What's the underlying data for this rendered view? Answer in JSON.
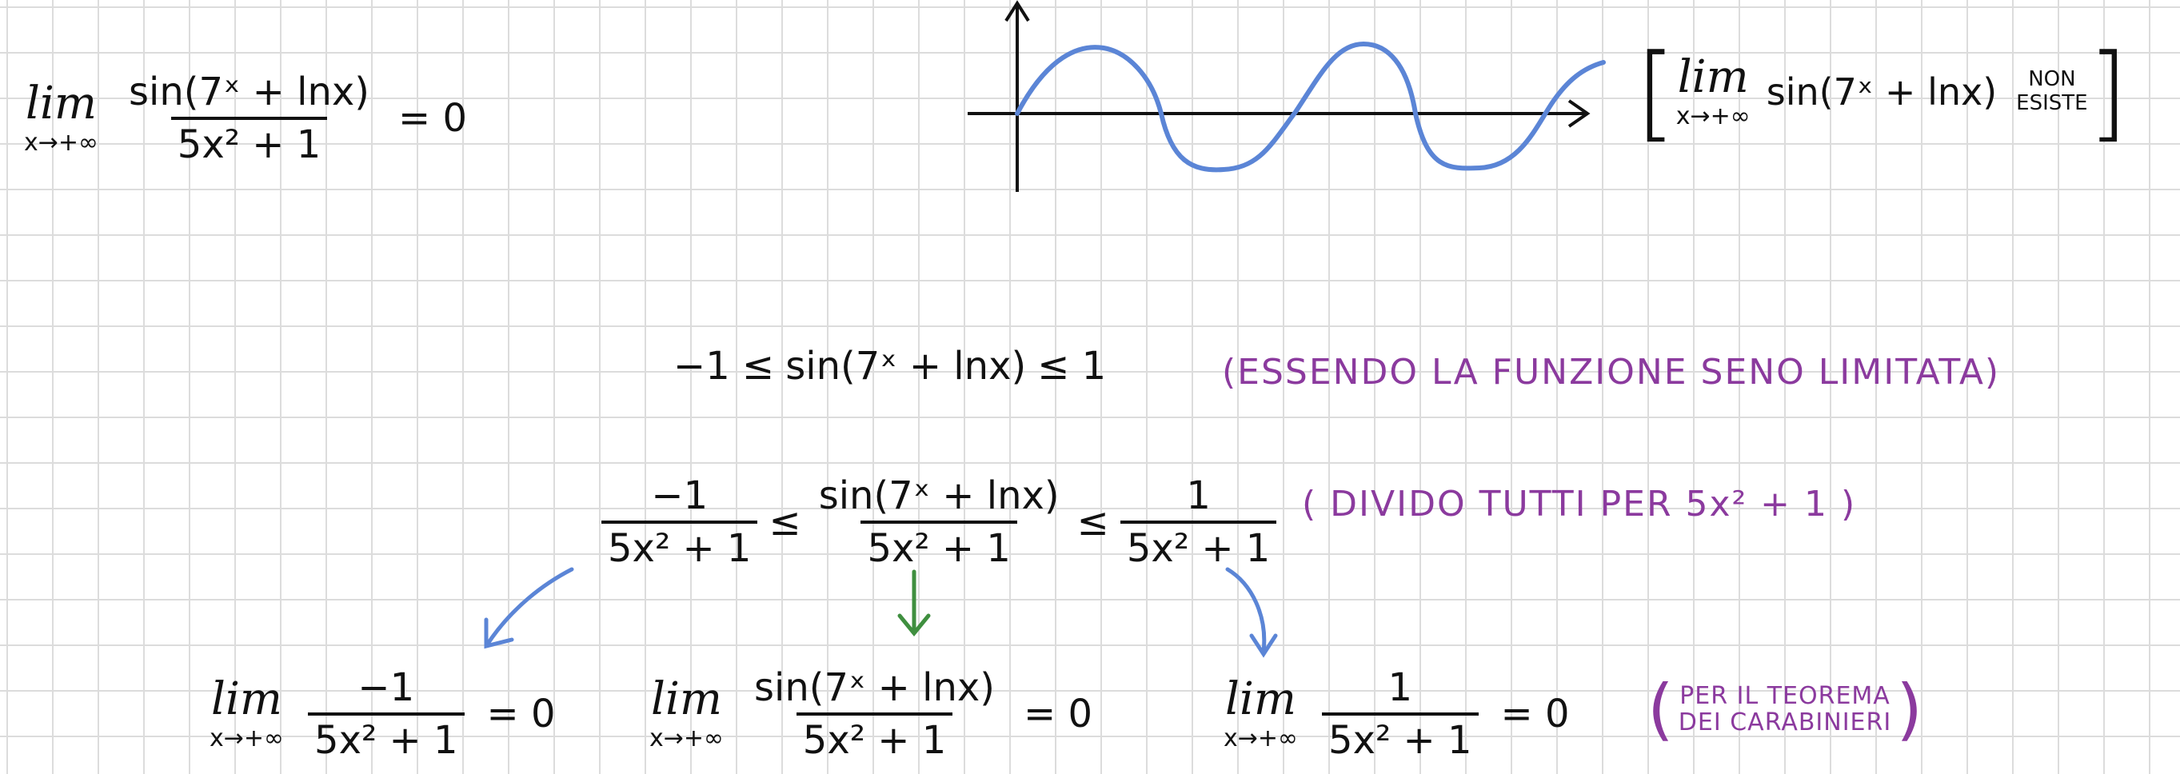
{
  "lim": {
    "word": "lim",
    "sub": "x→+∞"
  },
  "top_limit": {
    "numerator": "sin(7ˣ + lnx)",
    "denominator": "5x² + 1",
    "result": "= 0"
  },
  "bracket_note": {
    "expression": "sin(7ˣ + lnx)",
    "non": "NON",
    "esiste": "ESISTE"
  },
  "bounds": {
    "left": "−1 ≤",
    "middle": "sin(7ˣ + lnx)",
    "right": "≤ 1",
    "note": "(ESSENDO LA FUNZIONE SENO LIMITATA)"
  },
  "divided": {
    "left_num": "−1",
    "left_den": "5x² + 1",
    "le": "≤",
    "mid_num": "sin(7ˣ + lnx)",
    "mid_den": "5x² + 1",
    "right_num": "1",
    "right_den": "5x² + 1",
    "note": "( DIVIDO TUTTI PER 5x² + 1 )"
  },
  "limits_row": {
    "left_num": "−1",
    "left_den": "5x² + 1",
    "mid_num": "sin(7ˣ + lnx)",
    "mid_den": "5x² + 1",
    "right_num": "1",
    "right_den": "5x² + 1",
    "result": "= 0"
  },
  "carabinieri": {
    "open": "(",
    "line1": "PER IL TEOREMA",
    "line2": "DEI CARABINIERI",
    "close": ")"
  },
  "colors": {
    "ink": "#111111",
    "blue": "#5b85d6",
    "green": "#3f8f3f",
    "purple": "#8b3a9e",
    "grid": "#dcdcdc"
  }
}
